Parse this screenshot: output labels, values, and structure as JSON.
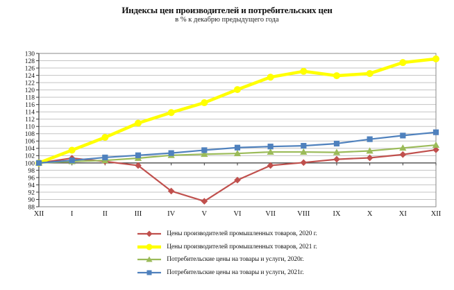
{
  "page": {
    "title": "Индексы цен производителей и потребительских цен",
    "subtitle": "в % к декабрю предыдущего года"
  },
  "colors": {
    "ppi_2020": "#C0504D",
    "ppi_2021": "#FFFF00",
    "cpi_2020": "#9BBB59",
    "cpi_2021": "#4F81BD",
    "gridline": "#c3c3c3",
    "plot_border": "#898989",
    "axis_line": "#3a3a3a",
    "text": "#111111"
  },
  "chart_data": {
    "type": "line",
    "title": "Индексы цен производителей и потребительских цен",
    "subtitle": "в % к декабрю предыдущего года",
    "xlabel": "",
    "ylabel": "",
    "categories": [
      "XII",
      "I",
      "II",
      "III",
      "IV",
      "V",
      "VI",
      "VII",
      "VIII",
      "IX",
      "X",
      "XI",
      "XII"
    ],
    "ylim": [
      88,
      130
    ],
    "ytick_step": 2,
    "x_axis_cross_at": 100,
    "grid": true,
    "legend_position": "bottom",
    "series": [
      {
        "name": "Цены производителей промышленных товаров, 2020 г.",
        "color": "#C0504D",
        "marker": "diamond",
        "line_width": 2.2,
        "values": [
          100,
          101.3,
          100.4,
          99.3,
          92.3,
          89.5,
          95.3,
          99.3,
          100.1,
          101.0,
          101.4,
          102.3,
          103.6
        ]
      },
      {
        "name": "Цены производителей промышленных товаров, 2021 г.",
        "color": "#FFFF00",
        "marker": "circle",
        "line_width": 4.5,
        "values": [
          100,
          103.5,
          107.0,
          110.9,
          113.8,
          116.5,
          120.1,
          123.5,
          125.1,
          123.9,
          124.5,
          127.5,
          128.5
        ]
      },
      {
        "name": "Потребительские цены на товары и услуги, 2020г.",
        "color": "#9BBB59",
        "marker": "triangle",
        "line_width": 2.2,
        "values": [
          100,
          100.4,
          100.7,
          101.3,
          102.1,
          102.4,
          102.6,
          103.0,
          103.0,
          102.9,
          103.3,
          104.1,
          104.9
        ]
      },
      {
        "name": "Потребительские цены на товары и услуги, 2021г.",
        "color": "#4F81BD",
        "marker": "square",
        "line_width": 2.2,
        "values": [
          100,
          100.7,
          101.5,
          102.1,
          102.7,
          103.5,
          104.2,
          104.5,
          104.7,
          105.3,
          106.5,
          107.5,
          108.4
        ]
      }
    ]
  }
}
